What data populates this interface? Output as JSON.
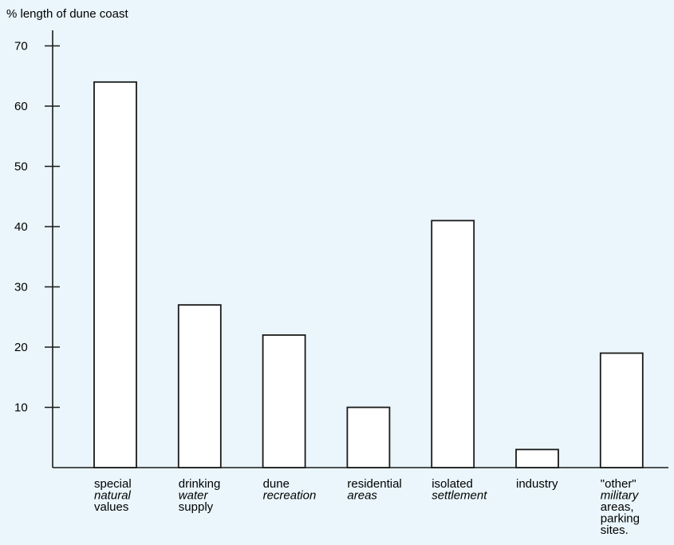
{
  "chart_data": {
    "type": "bar",
    "ylabel": "% length of dune coast",
    "ylim": [
      0,
      70
    ],
    "yticks": [
      10,
      20,
      30,
      40,
      50,
      60,
      70
    ],
    "categories": [
      "special natural values",
      "drinking water supply",
      "dune recreation",
      "residential areas",
      "isolated settlement",
      "industry",
      "\"other\" military areas, parking sites."
    ],
    "category_label_lines": [
      [
        {
          "text": "special",
          "italic": false
        },
        {
          "text": "natural",
          "italic": true
        },
        {
          "text": "values",
          "italic": false
        }
      ],
      [
        {
          "text": "drinking",
          "italic": false
        },
        {
          "text": "water",
          "italic": true
        },
        {
          "text": "supply",
          "italic": false
        }
      ],
      [
        {
          "text": "dune",
          "italic": false
        },
        {
          "text": "recreation",
          "italic": true
        }
      ],
      [
        {
          "text": "residential",
          "italic": false
        },
        {
          "text": "areas",
          "italic": true
        }
      ],
      [
        {
          "text": "isolated",
          "italic": false
        },
        {
          "text": "settlement",
          "italic": true
        }
      ],
      [
        {
          "text": "industry",
          "italic": false
        }
      ],
      [
        {
          "text": "\"other\"",
          "italic": false
        },
        {
          "text": "military",
          "italic": true
        },
        {
          "text": "areas,",
          "italic": false
        },
        {
          "text": "parking",
          "italic": false
        },
        {
          "text": "sites.",
          "italic": false
        }
      ]
    ],
    "values": [
      64,
      27,
      22,
      10,
      41,
      3,
      19
    ],
    "grid": false,
    "colors": {
      "background": "#eaf6fb",
      "bar_fill": "#ffffff",
      "stroke": "#1a1a1a"
    }
  }
}
